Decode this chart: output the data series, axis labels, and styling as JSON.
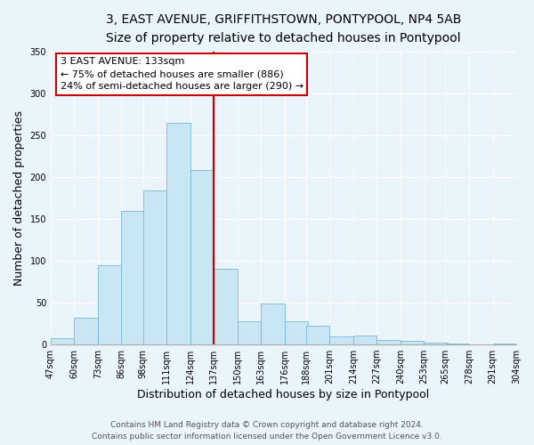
{
  "title_line1": "3, EAST AVENUE, GRIFFITHSTOWN, PONTYPOOL, NP4 5AB",
  "title_line2": "Size of property relative to detached houses in Pontypool",
  "xlabel": "Distribution of detached houses by size in Pontypool",
  "ylabel": "Number of detached properties",
  "bar_left_edges": [
    47,
    60,
    73,
    86,
    98,
    111,
    124,
    137,
    150,
    163,
    176,
    188,
    201,
    214,
    227,
    240,
    253,
    265,
    278,
    291
  ],
  "bar_heights": [
    7,
    32,
    95,
    160,
    184,
    265,
    208,
    90,
    28,
    49,
    28,
    22,
    10,
    11,
    5,
    4,
    2,
    1,
    0,
    1
  ],
  "bin_width": 13,
  "tick_labels": [
    "47sqm",
    "60sqm",
    "73sqm",
    "86sqm",
    "98sqm",
    "111sqm",
    "124sqm",
    "137sqm",
    "150sqm",
    "163sqm",
    "176sqm",
    "188sqm",
    "201sqm",
    "214sqm",
    "227sqm",
    "240sqm",
    "253sqm",
    "265sqm",
    "278sqm",
    "291sqm",
    "304sqm"
  ],
  "tick_positions": [
    47,
    60,
    73,
    86,
    98,
    111,
    124,
    137,
    150,
    163,
    176,
    188,
    201,
    214,
    227,
    240,
    253,
    265,
    278,
    291,
    304
  ],
  "bar_color": "#c9e6f5",
  "bar_edge_color": "#7ab8d4",
  "vline_x": 137,
  "vline_color": "#cc0000",
  "annotation_title": "3 EAST AVENUE: 133sqm",
  "annotation_line1": "← 75% of detached houses are smaller (886)",
  "annotation_line2": "24% of semi-detached houses are larger (290) →",
  "ylim": [
    0,
    350
  ],
  "yticks": [
    0,
    50,
    100,
    150,
    200,
    250,
    300,
    350
  ],
  "footer_line1": "Contains HM Land Registry data © Crown copyright and database right 2024.",
  "footer_line2": "Contains public sector information licensed under the Open Government Licence v3.0.",
  "background_color": "#eaf4fb",
  "title_fontsize": 10,
  "subtitle_fontsize": 9,
  "axis_label_fontsize": 9,
  "tick_fontsize": 7,
  "footer_fontsize": 6.5,
  "annotation_fontsize": 8
}
